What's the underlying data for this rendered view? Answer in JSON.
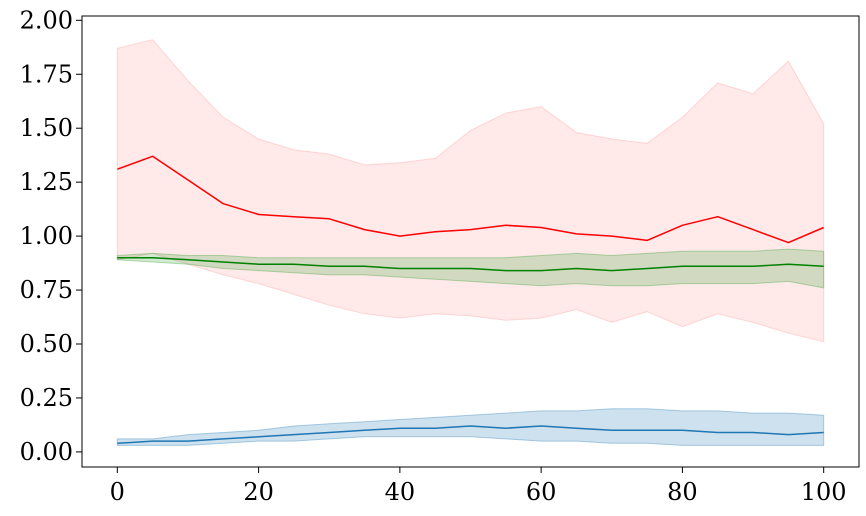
{
  "chart_data": {
    "type": "line",
    "title": "",
    "xlabel": "",
    "ylabel": "",
    "xlim": [
      -5,
      105
    ],
    "ylim": [
      -0.07,
      2.02
    ],
    "xticks": [
      0,
      20,
      40,
      60,
      80,
      100
    ],
    "xtick_labels": [
      "0",
      "20",
      "40",
      "60",
      "80",
      "100"
    ],
    "yticks": [
      0.0,
      0.25,
      0.5,
      0.75,
      1.0,
      1.25,
      1.5,
      1.75,
      2.0
    ],
    "ytick_labels": [
      "0.00",
      "0.25",
      "0.50",
      "0.75",
      "1.00",
      "1.25",
      "1.50",
      "1.75",
      "2.00"
    ],
    "grid": false,
    "legend": "none",
    "x": [
      0,
      5,
      10,
      15,
      20,
      25,
      30,
      35,
      40,
      45,
      50,
      55,
      60,
      65,
      70,
      75,
      80,
      85,
      90,
      95,
      100
    ],
    "series": [
      {
        "color": "#ff0000",
        "band_color": "#ff9999",
        "mean": [
          1.31,
          1.37,
          1.26,
          1.15,
          1.1,
          1.09,
          1.08,
          1.03,
          1.0,
          1.02,
          1.03,
          1.05,
          1.04,
          1.01,
          1.0,
          0.98,
          1.05,
          1.09,
          1.03,
          0.97,
          1.04
        ],
        "upper": [
          1.87,
          1.91,
          1.72,
          1.55,
          1.45,
          1.4,
          1.38,
          1.33,
          1.34,
          1.36,
          1.49,
          1.57,
          1.6,
          1.48,
          1.45,
          1.43,
          1.55,
          1.71,
          1.66,
          1.81,
          1.52
        ],
        "lower": [
          0.89,
          0.92,
          0.87,
          0.82,
          0.78,
          0.73,
          0.68,
          0.64,
          0.62,
          0.64,
          0.63,
          0.61,
          0.62,
          0.66,
          0.6,
          0.65,
          0.58,
          0.64,
          0.6,
          0.55,
          0.51
        ]
      },
      {
        "color": "#008000",
        "band_color": "#2ca02c",
        "mean": [
          0.9,
          0.9,
          0.89,
          0.88,
          0.87,
          0.87,
          0.86,
          0.86,
          0.85,
          0.85,
          0.85,
          0.84,
          0.84,
          0.85,
          0.84,
          0.85,
          0.86,
          0.86,
          0.86,
          0.87,
          0.86
        ],
        "upper": [
          0.91,
          0.92,
          0.91,
          0.91,
          0.9,
          0.9,
          0.9,
          0.9,
          0.9,
          0.9,
          0.9,
          0.9,
          0.91,
          0.92,
          0.91,
          0.92,
          0.93,
          0.93,
          0.93,
          0.94,
          0.93
        ],
        "lower": [
          0.89,
          0.88,
          0.87,
          0.85,
          0.84,
          0.83,
          0.82,
          0.82,
          0.81,
          0.8,
          0.79,
          0.78,
          0.77,
          0.78,
          0.77,
          0.77,
          0.78,
          0.78,
          0.78,
          0.79,
          0.76
        ]
      },
      {
        "color": "#1f77b4",
        "band_color": "#1f77b4",
        "mean": [
          0.04,
          0.05,
          0.05,
          0.06,
          0.07,
          0.08,
          0.09,
          0.1,
          0.11,
          0.11,
          0.12,
          0.11,
          0.12,
          0.11,
          0.1,
          0.1,
          0.1,
          0.09,
          0.09,
          0.08,
          0.09
        ],
        "upper": [
          0.06,
          0.06,
          0.08,
          0.09,
          0.1,
          0.12,
          0.13,
          0.14,
          0.15,
          0.16,
          0.17,
          0.18,
          0.19,
          0.19,
          0.2,
          0.2,
          0.19,
          0.19,
          0.18,
          0.18,
          0.17
        ],
        "lower": [
          0.03,
          0.03,
          0.03,
          0.04,
          0.05,
          0.05,
          0.06,
          0.07,
          0.07,
          0.07,
          0.07,
          0.06,
          0.05,
          0.05,
          0.04,
          0.04,
          0.03,
          0.03,
          0.03,
          0.03,
          0.03
        ]
      }
    ]
  }
}
